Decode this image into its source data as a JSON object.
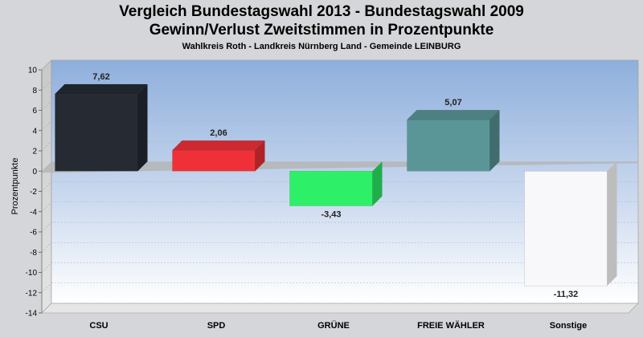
{
  "chart_data": {
    "type": "bar",
    "title": "Vergleich Bundestagswahl 2013  - Bundestagswahl 2009",
    "subtitle": "Gewinn/Verlust Zweitstimmen in Prozentpunkte",
    "subtitle2": "Wahlkreis Roth - Landkreis Nürnberg Land - Gemeinde LEINBURG",
    "xlabel": "",
    "ylabel": "Prozentpunkte",
    "ylim": [
      -14,
      10
    ],
    "yticks": [
      10,
      8,
      6,
      4,
      2,
      0,
      -2,
      -4,
      -6,
      -8,
      -10,
      -12,
      -14
    ],
    "categories": [
      "CSU",
      "SPD",
      "GRÜNE",
      "FREIE WÄHLER",
      "Sonstige"
    ],
    "values": [
      7.62,
      2.06,
      -3.43,
      5.07,
      -11.32
    ],
    "value_labels": [
      "7,62",
      "2,06",
      "-3,43",
      "5,07",
      "-11,32"
    ],
    "colors": [
      "#262a33",
      "#f03038",
      "#2ef068",
      "#5a9698",
      "#f8f8fa"
    ],
    "grid": true,
    "legend": "none"
  }
}
